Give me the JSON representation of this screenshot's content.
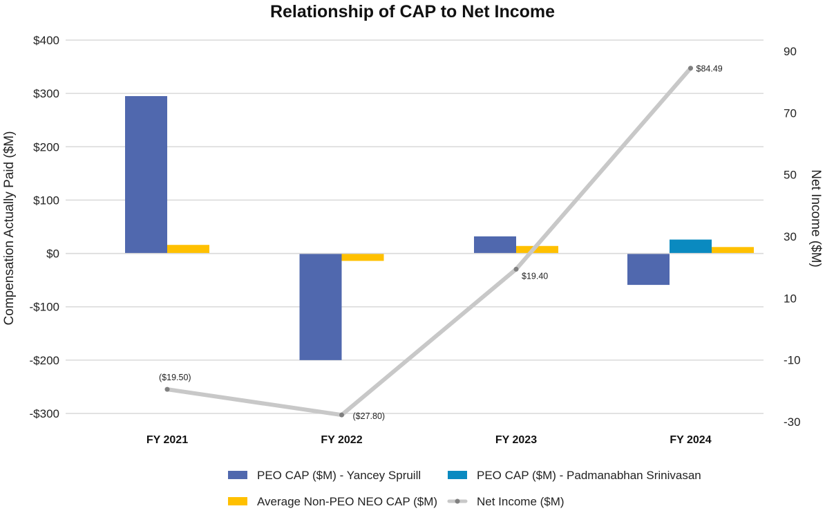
{
  "chart_data": {
    "type": "bar",
    "title": "Relationship of CAP to Net Income",
    "categories": [
      "FY 2021",
      "FY 2022",
      "FY 2023",
      "FY 2024"
    ],
    "xlabel": "",
    "ylabel": "Compensation Actually Paid ($M)",
    "ylabel_right": "Net Income ($M)",
    "ylim": [
      -300,
      400
    ],
    "yticks": [
      400,
      300,
      200,
      100,
      0,
      -100,
      -200,
      -300
    ],
    "ytick_labels": [
      "$400",
      "$300",
      "$200",
      "$100",
      "$0",
      "-$100",
      "-$200",
      "-$300"
    ],
    "ylim_right": [
      -30,
      90
    ],
    "yticks_right": [
      90,
      70,
      50,
      30,
      10,
      -10,
      -30
    ],
    "ytick_labels_right": [
      "90",
      "70",
      "50",
      "30",
      "10",
      "-10",
      "-30"
    ],
    "grid": true,
    "legend_position": "bottom",
    "series": [
      {
        "name": "PEO CAP ($M) - Yancey Spruill",
        "type": "bar",
        "axis": "left",
        "color": "#5068AE",
        "values": [
          295,
          -200,
          32,
          -59
        ]
      },
      {
        "name": "PEO CAP ($M) - Padmanabhan Srinivasan",
        "type": "bar",
        "axis": "left",
        "color": "#0A8AC0",
        "values": [
          null,
          null,
          null,
          26
        ]
      },
      {
        "name": "Average Non-PEO NEO CAP ($M)",
        "type": "bar",
        "axis": "left",
        "color": "#FFC000",
        "values": [
          16,
          -14,
          14,
          12
        ]
      },
      {
        "name": "Net Income ($M)",
        "type": "line",
        "axis": "right",
        "color": "#C8C8C8",
        "marker_color": "#808080",
        "values": [
          -19.5,
          -27.8,
          19.4,
          84.49
        ],
        "data_labels": [
          "($19.50)",
          "($27.80)",
          "$19.40",
          "$84.49"
        ]
      }
    ]
  }
}
